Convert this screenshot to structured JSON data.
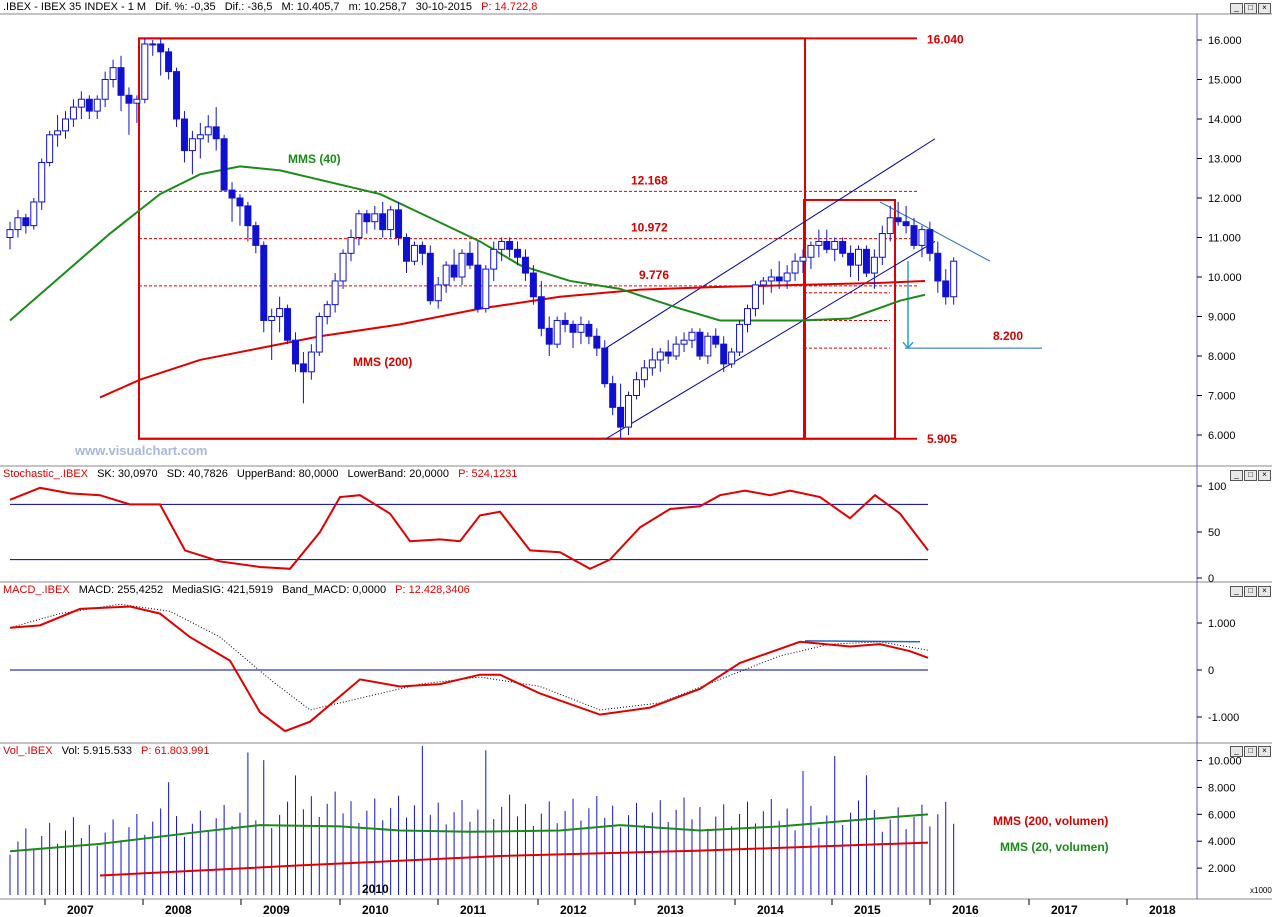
{
  "header": {
    "symbol": ".IBEX - IBEX 35 INDEX - 1 M",
    "dif_pct": "Dif. %: -0,35",
    "dif": "Dif.: -36,5",
    "max": "M: 10.405,7",
    "min": "m: 10.258,7",
    "date": "30-10-2015",
    "price": "P: 14.722,8"
  },
  "stoch_header": {
    "name": "Stochastic_.IBEX",
    "sk": "SK: 30,0970",
    "sd": "SD: 40,7826",
    "upper": "UpperBand: 80,0000",
    "lower": "LowerBand: 20,0000",
    "p": "P: 524,1231"
  },
  "macd_header": {
    "name": "MACD_.IBEX",
    "macd": "MACD: 255,4252",
    "signal": "MediaSIG: 421,5919",
    "band": "Band_MACD: 0,0000",
    "p": "P: 12.428,3406"
  },
  "vol_header": {
    "name": "Vol_.IBEX",
    "vol": "Vol: 5.915.533",
    "p": "P: 61.803.991"
  },
  "watermark": "www.visualchart.com",
  "x1000": "x1000",
  "colors": {
    "candle": "#1010d0",
    "red": "#e00000",
    "green": "#1a8a1a",
    "blue": "#0000a0",
    "label_red": "#d40000"
  },
  "chart_data": [
    {
      "type": "candlestick",
      "title": ".IBEX - IBEX 35 INDEX - 1 M",
      "x_years": [
        "2007",
        "2008",
        "2009",
        "2010",
        "2011",
        "2012",
        "2013",
        "2014",
        "2015",
        "2016",
        "2017",
        "2018"
      ],
      "ylim": [
        5500,
        16500
      ],
      "y_ticks": [
        "6.000",
        "7.000",
        "8.000",
        "9.000",
        "10.000",
        "11.000",
        "12.000",
        "13.000",
        "14.000",
        "15.000",
        "16.000"
      ],
      "ohlc": [
        [
          11000,
          11400,
          10700,
          11200
        ],
        [
          11200,
          11700,
          11000,
          11500
        ],
        [
          11500,
          11600,
          11100,
          11300
        ],
        [
          11300,
          12000,
          11200,
          11900
        ],
        [
          11900,
          13000,
          11700,
          12900
        ],
        [
          12900,
          13700,
          12800,
          13600
        ],
        [
          13600,
          14100,
          13300,
          13700
        ],
        [
          13700,
          14200,
          13500,
          14000
        ],
        [
          14000,
          14500,
          13800,
          14300
        ],
        [
          14300,
          14700,
          14000,
          14500
        ],
        [
          14500,
          14600,
          14000,
          14200
        ],
        [
          14200,
          14600,
          14000,
          14500
        ],
        [
          14500,
          15200,
          14300,
          15000
        ],
        [
          15000,
          15500,
          14800,
          15300
        ],
        [
          15300,
          15600,
          14200,
          14600
        ],
        [
          14600,
          14800,
          13600,
          14400
        ],
        [
          14400,
          14600,
          13900,
          14500
        ],
        [
          14500,
          16040,
          14400,
          15900
        ],
        [
          15900,
          16000,
          15600,
          15900
        ],
        [
          15900,
          16040,
          15100,
          15700
        ],
        [
          15700,
          15800,
          15000,
          15200
        ],
        [
          15200,
          15300,
          13800,
          14000
        ],
        [
          14000,
          14200,
          12900,
          13200
        ],
        [
          13200,
          13700,
          12600,
          13500
        ],
        [
          13500,
          13900,
          13000,
          13600
        ],
        [
          13600,
          14100,
          13400,
          13800
        ],
        [
          13800,
          14300,
          13200,
          13500
        ],
        [
          13500,
          13600,
          12200,
          12200
        ],
        [
          12200,
          12400,
          11400,
          12000
        ],
        [
          12000,
          12100,
          11300,
          11800
        ],
        [
          11800,
          11900,
          10900,
          11300
        ],
        [
          11300,
          11400,
          10600,
          10800
        ],
        [
          10800,
          10900,
          8600,
          8900
        ],
        [
          8900,
          9200,
          7900,
          9000
        ],
        [
          9000,
          9500,
          8600,
          9200
        ],
        [
          9200,
          9300,
          8300,
          8400
        ],
        [
          8400,
          8600,
          7600,
          7800
        ],
        [
          7800,
          8100,
          6800,
          7600
        ],
        [
          7600,
          8300,
          7400,
          8100
        ],
        [
          8100,
          9100,
          8000,
          9000
        ],
        [
          9000,
          9400,
          8800,
          9300
        ],
        [
          9300,
          10100,
          9100,
          9900
        ],
        [
          9900,
          10700,
          9700,
          10600
        ],
        [
          10600,
          11200,
          10400,
          11000
        ],
        [
          11000,
          11700,
          10800,
          11600
        ],
        [
          11600,
          11700,
          11100,
          11400
        ],
        [
          11400,
          11800,
          11200,
          11600
        ],
        [
          11600,
          11900,
          11000,
          11200
        ],
        [
          11200,
          11800,
          11000,
          11700
        ],
        [
          11700,
          11900,
          10800,
          11000
        ],
        [
          11000,
          11100,
          10100,
          10400
        ],
        [
          10400,
          10900,
          10300,
          10800
        ],
        [
          10800,
          10900,
          10300,
          10600
        ],
        [
          10600,
          10800,
          9300,
          9400
        ],
        [
          9400,
          10000,
          9200,
          9800
        ],
        [
          9800,
          10400,
          9600,
          10300
        ],
        [
          10300,
          10700,
          9900,
          10000
        ],
        [
          10000,
          10700,
          9800,
          10600
        ],
        [
          10600,
          10900,
          10200,
          10300
        ],
        [
          10300,
          10900,
          9100,
          9200
        ],
        [
          9200,
          10300,
          9100,
          10200
        ],
        [
          10200,
          10900,
          9900,
          10700
        ],
        [
          10700,
          11000,
          10400,
          10900
        ],
        [
          10900,
          11000,
          10500,
          10700
        ],
        [
          10700,
          10900,
          10300,
          10500
        ],
        [
          10500,
          10700,
          9900,
          10100
        ],
        [
          10100,
          10300,
          9300,
          9500
        ],
        [
          9500,
          9900,
          8500,
          8700
        ],
        [
          8700,
          9000,
          8000,
          8300
        ],
        [
          8300,
          9000,
          8200,
          8900
        ],
        [
          8900,
          9100,
          8600,
          8800
        ],
        [
          8800,
          8900,
          8200,
          8600
        ],
        [
          8600,
          9000,
          8300,
          8800
        ],
        [
          8800,
          8900,
          8300,
          8500
        ],
        [
          8500,
          8700,
          8000,
          8200
        ],
        [
          8200,
          8400,
          7200,
          7300
        ],
        [
          7300,
          7500,
          6500,
          6700
        ],
        [
          6700,
          7300,
          5905,
          6200
        ],
        [
          6200,
          7100,
          6000,
          7000
        ],
        [
          7000,
          7600,
          6900,
          7400
        ],
        [
          7400,
          7900,
          7200,
          7700
        ],
        [
          7700,
          8200,
          7500,
          7900
        ],
        [
          7900,
          8200,
          7600,
          8100
        ],
        [
          8100,
          8400,
          7800,
          8000
        ],
        [
          8000,
          8500,
          7900,
          8300
        ],
        [
          8300,
          8600,
          8100,
          8400
        ],
        [
          8400,
          8700,
          8200,
          8600
        ],
        [
          8600,
          8700,
          7900,
          8000
        ],
        [
          8000,
          8600,
          7800,
          8500
        ],
        [
          8500,
          8700,
          8200,
          8300
        ],
        [
          8300,
          8500,
          7600,
          7800
        ],
        [
          7800,
          8200,
          7700,
          8100
        ],
        [
          8100,
          8900,
          8000,
          8800
        ],
        [
          8800,
          9300,
          8600,
          9200
        ],
        [
          9200,
          9900,
          9000,
          9800
        ],
        [
          9800,
          10000,
          9300,
          9900
        ],
        [
          9900,
          10200,
          9600,
          10000
        ],
        [
          10000,
          10400,
          9700,
          9900
        ],
        [
          9900,
          10300,
          9700,
          10100
        ],
        [
          10100,
          10600,
          9900,
          10400
        ],
        [
          10400,
          10700,
          10100,
          10500
        ],
        [
          10500,
          10900,
          10200,
          10800
        ],
        [
          10800,
          11200,
          10500,
          10900
        ],
        [
          10900,
          11200,
          10600,
          10700
        ],
        [
          10700,
          11000,
          10400,
          10900
        ],
        [
          10900,
          11000,
          10500,
          10600
        ],
        [
          10600,
          10800,
          10000,
          10300
        ],
        [
          10300,
          10800,
          9900,
          10700
        ],
        [
          10700,
          10800,
          10000,
          10100
        ],
        [
          10100,
          10700,
          9700,
          10500
        ],
        [
          10500,
          11300,
          10300,
          11100
        ],
        [
          11100,
          11800,
          10900,
          11500
        ],
        [
          11500,
          11900,
          11300,
          11400
        ],
        [
          11400,
          11800,
          11100,
          11300
        ],
        [
          11300,
          11500,
          10700,
          10800
        ],
        [
          10800,
          11300,
          10500,
          11200
        ],
        [
          11200,
          11400,
          10400,
          10600
        ],
        [
          10600,
          10900,
          9600,
          9900
        ],
        [
          9900,
          10200,
          9300,
          9500
        ],
        [
          9500,
          10500,
          9300,
          10400
        ]
      ],
      "levels": [
        {
          "label": "16.040",
          "value": 16040
        },
        {
          "label": "12.168",
          "value": 12168
        },
        {
          "label": "10.972",
          "value": 10972
        },
        {
          "label": "9.776",
          "value": 9776
        },
        {
          "label": "8.200",
          "value": 8200
        },
        {
          "label": "5.905",
          "value": 5905
        }
      ],
      "annotations": [
        "MMS (40)",
        "MMS (200)"
      ]
    },
    {
      "type": "line",
      "title": "Stochastic_.IBEX",
      "ylim": [
        0,
        100
      ],
      "y_ticks": [
        "100",
        "50",
        "0"
      ],
      "bands": [
        80,
        20
      ]
    },
    {
      "type": "line",
      "title": "MACD_.IBEX",
      "ylim": [
        -1500,
        1500
      ],
      "y_ticks": [
        "1.000",
        "0",
        "-1.000"
      ]
    },
    {
      "type": "bar",
      "title": "Vol_.IBEX",
      "ylim": [
        0,
        11000
      ],
      "y_ticks": [
        "10.000",
        "8.000",
        "6.000",
        "4.000",
        "2.000"
      ],
      "legend": [
        "MMS (200, volumen)",
        "MMS (20, volumen)"
      ],
      "annotation": "2010"
    }
  ]
}
